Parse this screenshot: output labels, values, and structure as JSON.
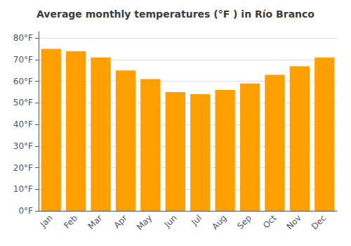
{
  "chart_data": {
    "type": "bar",
    "title": "Average monthly temperatures (°F ) in Río Branco",
    "categories": [
      "Jan",
      "Feb",
      "Mar",
      "Apr",
      "May",
      "Jun",
      "Jul",
      "Aug",
      "Sep",
      "Oct",
      "Nov",
      "Dec"
    ],
    "values": [
      75,
      74,
      71,
      65,
      61,
      55,
      54,
      56,
      59,
      63,
      67,
      71
    ],
    "color": "#FFA000",
    "ylim": [
      0,
      83
    ],
    "yticks": [
      {
        "value": 0,
        "label": "0°F"
      },
      {
        "value": 10,
        "label": "10°F"
      },
      {
        "value": 20,
        "label": "20°F"
      },
      {
        "value": 30,
        "label": "30°F"
      },
      {
        "value": 40,
        "label": "40°F"
      },
      {
        "value": 50,
        "label": "50°F"
      },
      {
        "value": 60,
        "label": "60°F"
      },
      {
        "value": 70,
        "label": "70°F"
      },
      {
        "value": 80,
        "label": "80°F"
      }
    ],
    "grid": true
  }
}
